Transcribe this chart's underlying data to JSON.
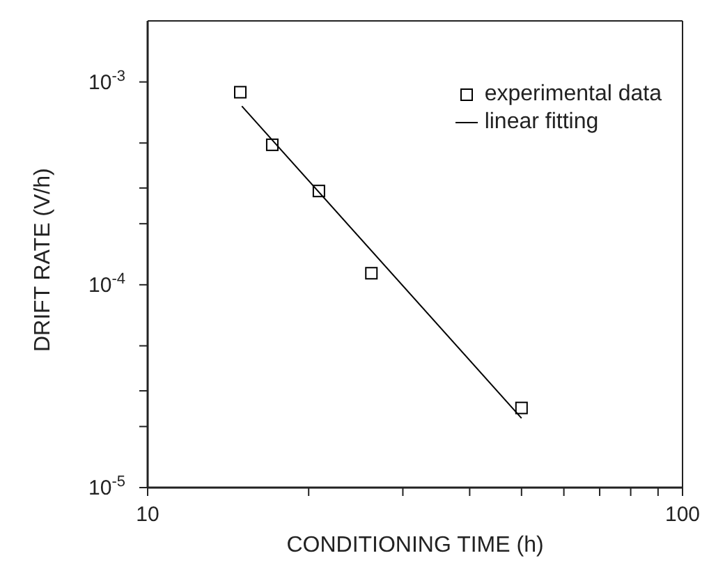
{
  "chart_data": {
    "type": "scatter",
    "xlabel": "CONDITIONING TIME (h)",
    "ylabel": "DRIFT RATE (V/h)",
    "log": "xy",
    "legend": "top right",
    "marker": "square",
    "xlim": [
      10,
      100
    ],
    "xticks": [
      10,
      {
        "value": 20,
        "label": null
      },
      {
        "value": 30,
        "label": null
      },
      {
        "value": 40,
        "label": null
      },
      {
        "value": 50,
        "label": null
      },
      {
        "value": 60,
        "label": null
      },
      {
        "value": 70,
        "label": null
      },
      {
        "value": 80,
        "label": null
      },
      {
        "value": 90,
        "label": null
      },
      100
    ],
    "ylim": [
      1e-05,
      0.002
    ],
    "yticks": [
      {
        "value": 1e-05,
        "label": "10$^{-5}$"
      },
      {
        "value": 2e-05,
        "label": null
      },
      {
        "value": 3e-05,
        "label": null
      },
      {
        "value": 5e-05,
        "label": null
      },
      {
        "value": 0.0001,
        "label": "10$^{-4}$"
      },
      {
        "value": 0.0002,
        "label": null
      },
      {
        "value": 0.0003,
        "label": null
      },
      {
        "value": 0.0005,
        "label": null
      },
      {
        "value": 0.001,
        "label": "10$^{-3}$"
      }
    ],
    "series": [
      {
        "name": "experimental data",
        "color": "#000000",
        "x": [
          14.9,
          17.1,
          20.9,
          26.2,
          50
        ],
        "values": [
          0.00089,
          0.00049,
          0.00029,
          0.000114,
          2.47e-05
        ]
      },
      {
        "name": "linear fitting",
        "type": "line",
        "marker": "none",
        "line_style": "solid",
        "color": "#000000",
        "x": [
          15,
          50
        ],
        "values": [
          0.00076,
          2.2e-05
        ]
      }
    ]
  }
}
